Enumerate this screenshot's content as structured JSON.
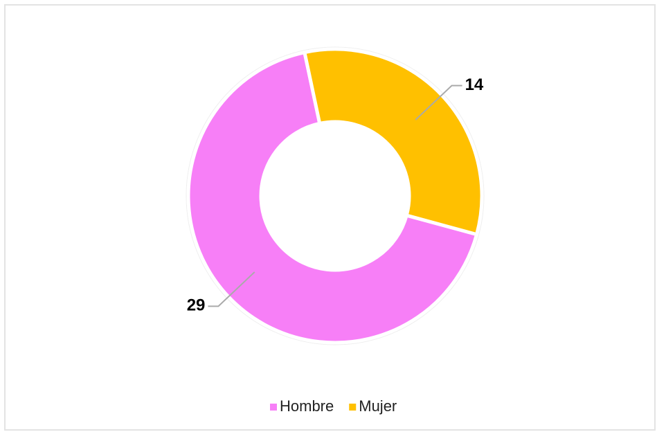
{
  "chart_data": {
    "type": "pie",
    "donut": true,
    "categories": [
      "Hombre",
      "Mujer"
    ],
    "values": [
      29,
      14
    ],
    "colors": [
      "#f77ff7",
      "#ffc000"
    ],
    "legend": "bottom"
  }
}
